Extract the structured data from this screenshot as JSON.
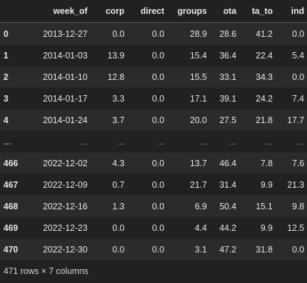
{
  "table": {
    "columns": [
      "",
      "week_of",
      "corp",
      "direct",
      "groups",
      "ota",
      "ta_to",
      "ind"
    ],
    "rows": [
      [
        "0",
        "2013-12-27",
        "0.0",
        "0.0",
        "28.9",
        "28.6",
        "41.2",
        "0.0"
      ],
      [
        "1",
        "2014-01-03",
        "13.9",
        "0.0",
        "15.4",
        "36.4",
        "22.4",
        "5.4"
      ],
      [
        "2",
        "2014-01-10",
        "12.8",
        "0.0",
        "15.5",
        "33.1",
        "34.3",
        "0.0"
      ],
      [
        "3",
        "2014-01-17",
        "3.3",
        "0.0",
        "17.1",
        "39.1",
        "24.2",
        "7.4"
      ],
      [
        "4",
        "2014-01-24",
        "3.7",
        "0.0",
        "20.0",
        "27.5",
        "21.8",
        "17.7"
      ],
      [
        "...",
        "...",
        "...",
        "...",
        "...",
        "...",
        "...",
        "..."
      ],
      [
        "466",
        "2022-12-02",
        "4.3",
        "0.0",
        "13.7",
        "46.4",
        "7.8",
        "7.6"
      ],
      [
        "467",
        "2022-12-09",
        "0.7",
        "0.0",
        "21.7",
        "31.4",
        "9.9",
        "21.3"
      ],
      [
        "468",
        "2022-12-16",
        "1.3",
        "0.0",
        "6.9",
        "50.4",
        "15.1",
        "9.8"
      ],
      [
        "469",
        "2022-12-23",
        "0.0",
        "0.0",
        "4.4",
        "44.2",
        "9.9",
        "12.5"
      ],
      [
        "470",
        "2022-12-30",
        "0.0",
        "0.0",
        "3.1",
        "47.2",
        "31.8",
        "0.0"
      ]
    ]
  },
  "footer": {
    "shape_text": "471 rows × 7 columns"
  }
}
